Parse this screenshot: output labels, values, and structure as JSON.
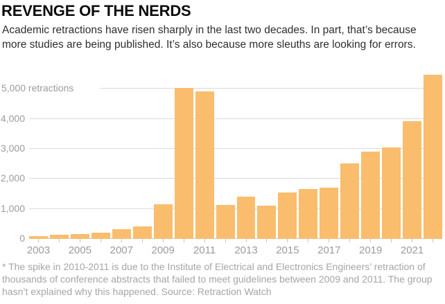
{
  "header": {
    "title": "REVENGE OF THE NERDS",
    "subtitle": "Academic retractions have risen sharply in the last two decades. In part, that’s because more studies are being published. It’s also because more sleuths are looking for errors."
  },
  "chart_data": {
    "type": "bar",
    "title": "REVENGE OF THE NERDS",
    "xlabel": "",
    "ylabel": "retractions",
    "categories": [
      "2003",
      "2004",
      "2005",
      "2006",
      "2007",
      "2008",
      "2009",
      "2010",
      "2011",
      "2012",
      "2013",
      "2014",
      "2015",
      "2016",
      "2017",
      "2018",
      "2019",
      "2020",
      "2021",
      "2022"
    ],
    "values": [
      90,
      150,
      160,
      220,
      330,
      420,
      1150,
      5030,
      4920,
      1130,
      1420,
      1110,
      1540,
      1670,
      1710,
      2520,
      2900,
      3050,
      3920,
      5480
    ],
    "x_tick_labels": [
      "2003",
      "2005",
      "2007",
      "2009",
      "2011",
      "2013",
      "2015",
      "2017",
      "2019",
      "2021"
    ],
    "y_ticks": [
      0,
      1000,
      2000,
      3000,
      4000,
      5000
    ],
    "y_tick_labels": [
      "0",
      "1,000",
      "2,000",
      "3,000",
      "4,000",
      "5,000 retractions"
    ],
    "ylim": [
      0,
      5540
    ],
    "grid": true,
    "legend": "none"
  },
  "footnote": "* The spike in 2010-2011 is due to the Institute of Electrical and Electronics Engineers’ retraction of thousands of conference abstracts that failed to meet guidelines between 2009 and 2011. The group hasn’t explained why this happened. Source: Retraction Watch",
  "colors": {
    "bar": "#F9BD6D",
    "gridline": "#DADADA",
    "axis_line": "#C4C4C4",
    "axis_label": "#9B9B9B",
    "title": "#0B0B0B",
    "subtitle": "#2E2E2E",
    "footnote": "#A5A5A5",
    "background": "#FFFFFF"
  }
}
